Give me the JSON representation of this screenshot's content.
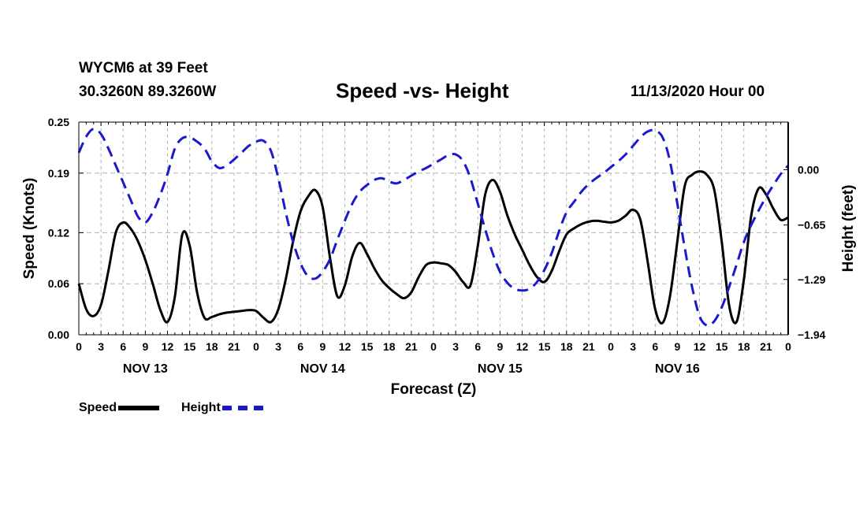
{
  "header": {
    "station": "WYCM6 at 39 Feet",
    "coords": "30.3260N 89.3260W",
    "title": "Speed -vs- Height",
    "runtime": "11/13/2020 Hour 00"
  },
  "colors": {
    "speed": "#000000",
    "height": "#1a1acc",
    "grid": "#b4b4b4"
  },
  "chart_data": {
    "type": "line",
    "title": "Speed -vs- Height",
    "xlabel": "Forecast (Z)",
    "ylabel_left": "Speed (Knots)",
    "ylabel_right": "Height (feet)",
    "x_range": [
      0,
      96
    ],
    "hour_ticks": [
      "0",
      "3",
      "6",
      "9",
      "12",
      "15",
      "18",
      "21",
      "0",
      "3",
      "6",
      "9",
      "12",
      "15",
      "18",
      "21",
      "0",
      "3",
      "6",
      "9",
      "12",
      "15",
      "18",
      "21",
      "0",
      "3",
      "6",
      "9",
      "12",
      "15",
      "18",
      "21",
      "0"
    ],
    "day_labels": [
      {
        "label": "NOV 13",
        "hour": 9
      },
      {
        "label": "NOV 14",
        "hour": 33
      },
      {
        "label": "NOV 15",
        "hour": 57
      },
      {
        "label": "NOV 16",
        "hour": 81
      }
    ],
    "y_left": {
      "range": [
        0,
        0.25
      ],
      "ticks": [
        0.0,
        0.06,
        0.12,
        0.19,
        0.25
      ],
      "tick_labels": [
        "0.00",
        "0.06",
        "0.12",
        "0.19",
        "0.25"
      ]
    },
    "y_right": {
      "range": [
        -1.94,
        0.56
      ],
      "ticks": [
        -1.94,
        -1.29,
        -0.65,
        0.0
      ],
      "tick_labels": [
        "−1.94",
        "−1.29",
        "−0.65",
        "0.00"
      ]
    },
    "grid": true,
    "legend_position": "bottom-left",
    "series": [
      {
        "name": "Speed",
        "axis": "left",
        "style": "solid",
        "x": [
          0,
          1,
          2,
          3,
          4,
          5,
          6,
          7,
          8,
          9,
          10,
          11,
          12,
          13,
          14,
          15,
          16,
          17,
          18,
          19,
          20,
          21,
          22,
          23,
          24,
          25,
          26,
          27,
          28,
          29,
          30,
          31,
          32,
          33,
          34,
          35,
          36,
          37,
          38,
          39,
          40,
          41,
          42,
          43,
          44,
          45,
          46,
          47,
          48,
          49,
          50,
          51,
          52,
          53,
          54,
          55,
          56,
          57,
          58,
          59,
          60,
          61,
          62,
          63,
          64,
          65,
          66,
          67,
          68,
          69,
          70,
          71,
          72,
          73,
          74,
          75,
          76,
          77,
          78,
          79,
          80,
          81,
          82,
          83,
          84,
          85,
          86,
          87,
          88,
          89,
          90,
          91,
          92,
          93,
          94,
          95,
          96
        ],
        "values": [
          0.06,
          0.03,
          0.022,
          0.035,
          0.075,
          0.12,
          0.132,
          0.125,
          0.11,
          0.088,
          0.06,
          0.03,
          0.015,
          0.045,
          0.118,
          0.105,
          0.05,
          0.02,
          0.021,
          0.024,
          0.026,
          0.027,
          0.028,
          0.029,
          0.028,
          0.02,
          0.015,
          0.03,
          0.065,
          0.11,
          0.145,
          0.162,
          0.17,
          0.15,
          0.09,
          0.045,
          0.058,
          0.092,
          0.108,
          0.095,
          0.078,
          0.064,
          0.055,
          0.048,
          0.043,
          0.05,
          0.068,
          0.082,
          0.085,
          0.084,
          0.082,
          0.074,
          0.062,
          0.058,
          0.105,
          0.165,
          0.182,
          0.168,
          0.14,
          0.118,
          0.1,
          0.082,
          0.068,
          0.062,
          0.075,
          0.098,
          0.118,
          0.125,
          0.13,
          0.133,
          0.134,
          0.133,
          0.132,
          0.134,
          0.14,
          0.147,
          0.135,
          0.085,
          0.03,
          0.014,
          0.045,
          0.11,
          0.175,
          0.188,
          0.192,
          0.188,
          0.17,
          0.11,
          0.035,
          0.015,
          0.065,
          0.14,
          0.172,
          0.165,
          0.148,
          0.135,
          0.138
        ]
      },
      {
        "name": "Height",
        "axis": "right",
        "style": "dashed",
        "x": [
          0,
          1,
          2,
          3,
          4,
          5,
          6,
          7,
          8,
          9,
          10,
          11,
          12,
          13,
          14,
          15,
          16,
          17,
          18,
          19,
          20,
          21,
          22,
          23,
          24,
          25,
          26,
          27,
          28,
          29,
          30,
          31,
          32,
          33,
          34,
          35,
          36,
          37,
          38,
          39,
          40,
          41,
          42,
          43,
          44,
          45,
          46,
          47,
          48,
          49,
          50,
          51,
          52,
          53,
          54,
          55,
          56,
          57,
          58,
          59,
          60,
          61,
          62,
          63,
          64,
          65,
          66,
          67,
          68,
          69,
          70,
          71,
          72,
          73,
          74,
          75,
          76,
          77,
          78,
          79,
          80,
          81,
          82,
          83,
          84,
          85,
          86,
          87,
          88,
          89,
          90,
          91,
          92,
          93,
          94,
          95,
          96
        ],
        "values": [
          0.2,
          0.39,
          0.48,
          0.42,
          0.25,
          0.05,
          -0.15,
          -0.35,
          -0.55,
          -0.62,
          -0.5,
          -0.3,
          -0.05,
          0.25,
          0.37,
          0.38,
          0.33,
          0.25,
          0.1,
          0.02,
          0.05,
          0.12,
          0.2,
          0.28,
          0.33,
          0.34,
          0.22,
          -0.1,
          -0.5,
          -0.85,
          -1.1,
          -1.25,
          -1.28,
          -1.2,
          -1.05,
          -0.82,
          -0.6,
          -0.4,
          -0.26,
          -0.18,
          -0.12,
          -0.1,
          -0.14,
          -0.16,
          -0.12,
          -0.07,
          -0.02,
          0.02,
          0.07,
          0.12,
          0.17,
          0.18,
          0.1,
          -0.1,
          -0.4,
          -0.7,
          -0.98,
          -1.2,
          -1.33,
          -1.4,
          -1.42,
          -1.4,
          -1.32,
          -1.18,
          -0.98,
          -0.72,
          -0.5,
          -0.38,
          -0.26,
          -0.17,
          -0.1,
          -0.04,
          0.03,
          0.1,
          0.18,
          0.28,
          0.38,
          0.45,
          0.46,
          0.38,
          0.1,
          -0.4,
          -0.92,
          -1.38,
          -1.72,
          -1.83,
          -1.78,
          -1.62,
          -1.38,
          -1.12,
          -0.85,
          -0.65,
          -0.48,
          -0.32,
          -0.18,
          -0.05,
          0.05
        ]
      }
    ]
  },
  "legend": {
    "speed_label": "Speed",
    "height_label": "Height"
  }
}
